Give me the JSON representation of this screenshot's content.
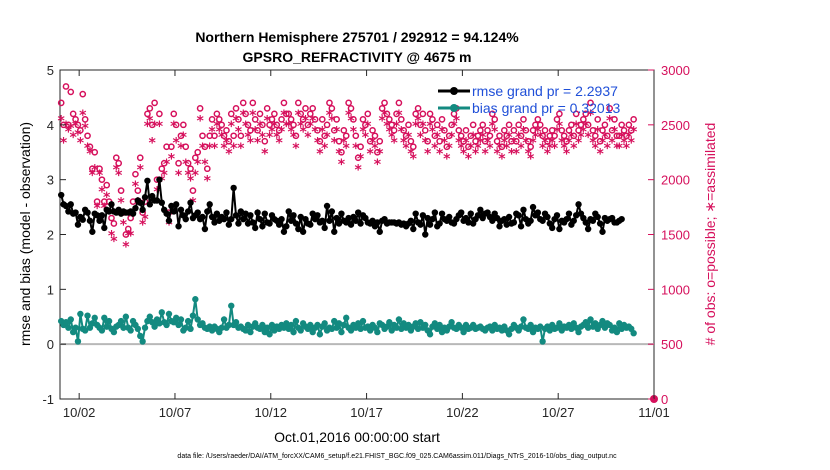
{
  "chart_data": {
    "type": "line",
    "title": "Northern Hemisphere 275701 / 292912 = 94.124%",
    "subtitle": "GPSRO_REFRACTIVITY @ 4675 m",
    "xlabel": "Oct.01,2016 00:00:00 start",
    "ylabel_left": "rmse and bias (model - observation)",
    "ylabel_right": "# of obs: o=possible; ∗=assimilated",
    "footnote": "data file: /Users/raeder/DAI/ATM_forcXX/CAM6_setup/f.e21.FHIST_BGC.f09_025.CAM6assim.011/Diags_NTrS_2016-10/obs_diag_output.nc",
    "x_ticks": [
      {
        "value": 1.5,
        "label": "10/02"
      },
      {
        "value": 6.5,
        "label": "10/07"
      },
      {
        "value": 11.5,
        "label": "10/12"
      },
      {
        "value": 16.5,
        "label": "10/17"
      },
      {
        "value": 21.5,
        "label": "10/22"
      },
      {
        "value": 26.5,
        "label": "10/27"
      },
      {
        "value": 31.5,
        "label": "11/01"
      }
    ],
    "xlim": [
      0.5,
      31.5
    ],
    "ylim_left": [
      -1,
      5
    ],
    "yticks_left": [
      "-1",
      "0",
      "1",
      "2",
      "3",
      "4",
      "5"
    ],
    "ylim_right": [
      0,
      3000
    ],
    "yticks_right": [
      "0",
      "500",
      "1000",
      "1500",
      "2000",
      "2500",
      "3000"
    ],
    "grid": false,
    "legend_position": "top-right",
    "colors": {
      "rmse": "#000000",
      "bias": "#138a80",
      "obs": "#d6105c",
      "legend_text": "#1f4fd8",
      "zero_line": "#b8b8b8"
    },
    "series": [
      {
        "name": "rmse grand pr = 2.2937",
        "axis": "left",
        "values": [
          2.72,
          2.55,
          2.52,
          2.42,
          2.55,
          2.38,
          2.4,
          2.18,
          2.32,
          2.27,
          2.45,
          2.4,
          2.25,
          2.05,
          2.38,
          2.35,
          2.25,
          2.35,
          2.12,
          2.45,
          2.42,
          2.55,
          2.42,
          2.4,
          2.45,
          2.38,
          2.42,
          2.4,
          2.4,
          2.42,
          2.38,
          2.48,
          2.62,
          2.58,
          2.45,
          2.68,
          2.98,
          2.55,
          2.7,
          2.62,
          2.62,
          3.0,
          2.58,
          2.45,
          2.38,
          2.25,
          2.52,
          2.42,
          2.55,
          2.15,
          2.45,
          2.35,
          2.28,
          2.42,
          2.58,
          2.3,
          2.35,
          2.4,
          2.28,
          2.32,
          2.1,
          2.42,
          2.55,
          2.32,
          2.22,
          2.38,
          2.25,
          2.32,
          2.28,
          2.4,
          2.18,
          2.28,
          2.85,
          2.35,
          2.2,
          2.42,
          2.28,
          2.38,
          2.2,
          2.35,
          2.22,
          2.12,
          2.4,
          2.28,
          2.15,
          2.38,
          2.22,
          2.2,
          2.35,
          2.28,
          2.25,
          2.18,
          2.28,
          2.05,
          2.15,
          2.42,
          2.25,
          2.35,
          2.2,
          2.1,
          2.32,
          2.05,
          2.28,
          2.2,
          2.18,
          2.38,
          2.28,
          2.35,
          2.22,
          2.25,
          2.12,
          2.52,
          2.25,
          2.42,
          2.05,
          2.3,
          2.2,
          2.38,
          2.25,
          2.22,
          2.3,
          2.18,
          2.32,
          2.25,
          2.4,
          2.2,
          2.35,
          2.3,
          2.22,
          2.2,
          2.25,
          2.15,
          2.22,
          2.05,
          2.25,
          2.28,
          2.2,
          2.22,
          2.22,
          2.22,
          2.2,
          2.22,
          2.18,
          2.2,
          2.15,
          2.2,
          2.25,
          2.1,
          2.38,
          2.22,
          2.18,
          2.35,
          2.0,
          2.3,
          2.18,
          2.28,
          2.4,
          2.15,
          2.2,
          2.38,
          2.28,
          2.25,
          2.32,
          2.22,
          2.2,
          2.28,
          2.35,
          2.4,
          2.25,
          2.3,
          2.22,
          2.38,
          2.2,
          2.28,
          2.35,
          2.45,
          2.3,
          2.38,
          2.4,
          2.32,
          2.25,
          2.38,
          2.3,
          2.15,
          2.25,
          2.28,
          2.18,
          2.32,
          2.2,
          2.22,
          2.38,
          2.35,
          2.15,
          2.45,
          2.28,
          2.2,
          2.25,
          2.5,
          2.35,
          2.4,
          2.28,
          2.25,
          2.38,
          2.32,
          2.2,
          2.12,
          2.28,
          2.35,
          2.1,
          2.25,
          2.22,
          2.28,
          2.38,
          2.18,
          2.25,
          2.35,
          2.55,
          2.38,
          2.3,
          2.22,
          2.1,
          2.28,
          2.25,
          2.38,
          2.32,
          2.2,
          2.05,
          2.3,
          2.25,
          2.28,
          2.3,
          2.22,
          2.22,
          2.25,
          2.28
        ]
      },
      {
        "name": "bias grand pr = 0.32013",
        "axis": "left",
        "values": [
          0.42,
          0.35,
          0.4,
          0.3,
          0.45,
          0.22,
          0.3,
          0.05,
          0.55,
          0.28,
          0.25,
          0.52,
          0.3,
          0.38,
          0.48,
          0.35,
          0.3,
          0.25,
          0.48,
          0.32,
          0.42,
          0.28,
          0.22,
          0.32,
          0.35,
          0.42,
          0.3,
          0.5,
          0.3,
          0.25,
          0.42,
          0.35,
          0.28,
          0.15,
          0.05,
          0.3,
          0.42,
          0.5,
          0.4,
          0.32,
          0.45,
          0.38,
          0.58,
          0.4,
          0.35,
          0.55,
          0.42,
          0.4,
          0.48,
          0.35,
          0.45,
          0.25,
          0.3,
          0.42,
          0.28,
          0.52,
          0.82,
          0.45,
          0.35,
          0.38,
          0.3,
          0.28,
          0.32,
          0.25,
          0.32,
          0.28,
          0.22,
          0.3,
          0.45,
          0.3,
          0.35,
          0.7,
          0.35,
          0.4,
          0.3,
          0.32,
          0.28,
          0.25,
          0.35,
          0.22,
          0.32,
          0.38,
          0.3,
          0.28,
          0.35,
          0.22,
          0.3,
          0.18,
          0.35,
          0.25,
          0.32,
          0.28,
          0.35,
          0.3,
          0.38,
          0.28,
          0.35,
          0.22,
          0.42,
          0.3,
          0.25,
          0.38,
          0.32,
          0.28,
          0.35,
          0.22,
          0.3,
          0.35,
          0.18,
          0.32,
          0.38,
          0.25,
          0.3,
          0.28,
          0.42,
          0.3,
          0.38,
          0.22,
          0.35,
          0.48,
          0.3,
          0.25,
          0.35,
          0.3,
          0.38,
          0.28,
          0.42,
          0.3,
          0.32,
          0.25,
          0.35,
          0.3,
          0.22,
          0.38,
          0.35,
          0.28,
          0.32,
          0.4,
          0.25,
          0.35,
          0.3,
          0.45,
          0.28,
          0.38,
          0.3,
          0.35,
          0.25,
          0.32,
          0.38,
          0.28,
          0.4,
          0.3,
          0.35,
          0.25,
          0.18,
          0.32,
          0.38,
          0.28,
          0.35,
          0.22,
          0.3,
          0.25,
          0.32,
          0.4,
          0.3,
          0.28,
          0.35,
          0.3,
          0.22,
          0.35,
          0.28,
          0.3,
          0.35,
          0.28,
          0.3,
          0.32,
          0.28,
          0.25,
          0.3,
          0.32,
          0.25,
          0.35,
          0.28,
          0.3,
          0.25,
          0.32,
          0.25,
          0.18,
          0.28,
          0.35,
          0.3,
          0.25,
          0.32,
          0.45,
          0.3,
          0.28,
          0.35,
          0.22,
          0.3,
          0.28,
          0.32,
          0.05,
          0.28,
          0.32,
          0.25,
          0.35,
          0.28,
          0.3,
          0.38,
          0.25,
          0.32,
          0.3,
          0.35,
          0.28,
          0.38,
          0.3,
          0.22,
          0.32,
          0.35,
          0.4,
          0.3,
          0.45,
          0.32,
          0.38,
          0.28,
          0.35,
          0.42,
          0.3,
          0.38,
          0.35,
          0.25,
          0.3,
          0.22,
          0.38,
          0.28,
          0.35,
          0.3,
          0.32,
          0.28,
          0.2
        ]
      }
    ],
    "obs_possible": [
      2700,
      2500,
      2850,
      2500,
      2800,
      2600,
      2550,
      2500,
      2450,
      2780,
      2550,
      2400,
      2300,
      2100,
      2250,
      1800,
      2100,
      2000,
      1800,
      1950,
      1800,
      1650,
      1600,
      2200,
      2150,
      1900,
      1700,
      1500,
      1550,
      1650,
      1800,
      2050,
      1900,
      2200,
      1700,
      1800,
      2600,
      2650,
      2500,
      2700,
      2000,
      2600,
      2100,
      2150,
      2300,
      1700,
      2300,
      2600,
      2500,
      2150,
      2400,
      2500,
      2300,
      2150,
      2100,
      1900,
      2200,
      2250,
      2650,
      2400,
      2300,
      2100,
      2400,
      2550,
      2400,
      2600,
      2550,
      2500,
      2400,
      2450,
      2350,
      2600,
      2400,
      2650,
      2550,
      2400,
      2700,
      2600,
      2500,
      2450,
      2700,
      2550,
      2450,
      2600,
      2500,
      2350,
      2650,
      2500,
      2550,
      2600,
      2500,
      2450,
      2550,
      2700,
      2600,
      2600,
      2550,
      2500,
      2400,
      2700,
      2600,
      2550,
      2650,
      2500,
      2600,
      2650,
      2550,
      2450,
      2350,
      2550,
      2400,
      2500,
      2700,
      2650,
      2450,
      2550,
      2350,
      2250,
      2450,
      2400,
      2700,
      2650,
      2550,
      2400,
      2200,
      2300,
      2550,
      2500,
      2600,
      2350,
      2450,
      2400,
      2250,
      2350,
      2650,
      2700,
      2600,
      2550,
      2500,
      2450,
      2600,
      2700,
      2550,
      2450,
      2400,
      2500,
      2350,
      2300,
      2600,
      2650,
      2500,
      2600,
      2450,
      2350,
      2600,
      2550,
      2400,
      2500,
      2350,
      2550,
      2450,
      2300,
      2400,
      2500,
      2600,
      2650,
      2450,
      2400,
      2350,
      2450,
      2300,
      2400,
      2500,
      2350,
      2400,
      2450,
      2500,
      2350,
      2450,
      2400,
      2600,
      2550,
      2350,
      2400,
      2300,
      2450,
      2400,
      2500,
      2350,
      2450,
      2350,
      2500,
      2400,
      2550,
      2450,
      2350,
      2300,
      2450,
      2500,
      2550,
      2500,
      2400,
      2450,
      2350,
      2400,
      2450,
      2400,
      2550,
      2600,
      2450,
      2400,
      2350,
      2450,
      2500,
      2400,
      2600,
      2450,
      2500,
      2550,
      2600,
      2500,
      2700,
      2450,
      2400,
      2550,
      2350,
      2450,
      2500,
      2400,
      2650,
      2450,
      2550,
      2400,
      2400,
      2500,
      2450,
      2400,
      2500,
      2450,
      2550
    ],
    "obs_assimilated": [
      2550,
      2350,
      2500,
      2450,
      2480,
      2400,
      2500,
      2420,
      2350,
      2600,
      2480,
      2300,
      2250,
      2050,
      2100,
      1750,
      2050,
      1900,
      1750,
      1850,
      1700,
      1500,
      1450,
      2100,
      2050,
      1800,
      1600,
      1400,
      1500,
      1500,
      1700,
      1950,
      1800,
      2100,
      1600,
      1650,
      2500,
      2550,
      2350,
      2500,
      1900,
      2500,
      2000,
      2050,
      2150,
      1600,
      2200,
      2500,
      2350,
      2050,
      2300,
      2400,
      2150,
      2050,
      2000,
      1800,
      2050,
      2150,
      2550,
      2300,
      2150,
      2000,
      2300,
      2450,
      2300,
      2500,
      2450,
      2400,
      2300,
      2350,
      2250,
      2500,
      2300,
      2550,
      2450,
      2300,
      2600,
      2500,
      2400,
      2350,
      2600,
      2450,
      2350,
      2500,
      2400,
      2250,
      2550,
      2400,
      2450,
      2500,
      2400,
      2350,
      2450,
      2600,
      2500,
      2500,
      2450,
      2400,
      2300,
      2600,
      2500,
      2450,
      2550,
      2400,
      2500,
      2550,
      2450,
      2350,
      2250,
      2450,
      2300,
      2400,
      2600,
      2550,
      2350,
      2450,
      2250,
      2150,
      2350,
      2300,
      2600,
      2550,
      2450,
      2300,
      2100,
      2200,
      2450,
      2400,
      2500,
      2250,
      2350,
      2300,
      2150,
      2250,
      2550,
      2600,
      2500,
      2450,
      2400,
      2350,
      2500,
      2600,
      2450,
      2350,
      2300,
      2400,
      2250,
      2200,
      2500,
      2550,
      2400,
      2500,
      2350,
      2250,
      2500,
      2450,
      2300,
      2400,
      2250,
      2450,
      2350,
      2200,
      2300,
      2400,
      2500,
      2550,
      2350,
      2300,
      2250,
      2350,
      2200,
      2300,
      2400,
      2250,
      2300,
      2350,
      2400,
      2250,
      2350,
      2300,
      2500,
      2450,
      2250,
      2300,
      2200,
      2350,
      2300,
      2400,
      2250,
      2350,
      2250,
      2400,
      2300,
      2450,
      2350,
      2250,
      2200,
      2350,
      2400,
      2450,
      2400,
      2300,
      2350,
      2250,
      2300,
      2350,
      2300,
      2450,
      2500,
      2350,
      2300,
      2250,
      2350,
      2400,
      2300,
      2500,
      2350,
      2400,
      2450,
      2500,
      2400,
      2600,
      2350,
      2300,
      2450,
      2250,
      2350,
      2400,
      2300,
      2550,
      2350,
      2450,
      2300,
      2300,
      2400,
      2350,
      2300,
      2400,
      2350,
      2450
    ]
  }
}
